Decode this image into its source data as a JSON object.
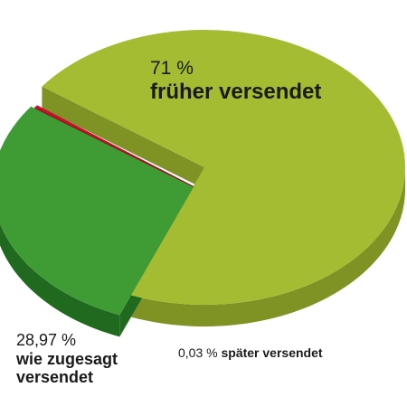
{
  "chart_data": {
    "type": "pie",
    "style": "3d-exploded",
    "title": "",
    "legend": "none",
    "slices": [
      {
        "label": "früher versendet",
        "percent_label": "71 %",
        "value": 71.0,
        "color": "#a3bc32",
        "side_color": "#7f9324"
      },
      {
        "label": "wie zugesagt versendet",
        "percent_label": "28,97 %",
        "value": 28.97,
        "color": "#3f9c34",
        "side_color": "#1f6a1e"
      },
      {
        "label": "später versendet",
        "percent_label": "0,03 %",
        "value": 0.03,
        "color": "#c8102e",
        "side_color": "#8e0b20"
      }
    ]
  }
}
